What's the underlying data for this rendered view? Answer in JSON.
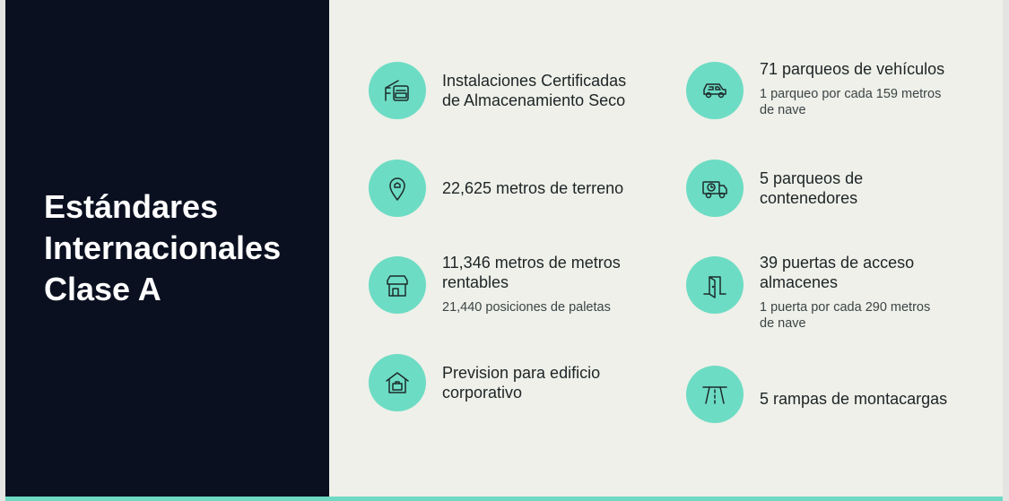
{
  "heading": {
    "line1": "Estándares",
    "line2": "Internacionales",
    "line3": "Clase A"
  },
  "colors": {
    "panel": "#0a1020",
    "background": "#eef0e9",
    "accent": "#6ddcc4"
  },
  "items": [
    {
      "icon": "warehouse-truck-icon",
      "title1": "Instalaciones Certificadas",
      "title2": "de Almacenamiento Seco"
    },
    {
      "icon": "location-pin-icon",
      "title1": "22,625 metros de terreno"
    },
    {
      "icon": "storefront-icon",
      "title1": "11,346 metros de metros",
      "title2": "rentables",
      "sub1": "21,440 posiciones de paletas"
    },
    {
      "icon": "building-icon",
      "title1": "Prevision para edificio",
      "title2": "corporativo"
    },
    {
      "icon": "car-icon",
      "title1": "71 parqueos de vehículos",
      "sub1": "1 parqueo por cada 159 metros",
      "sub2": "de nave"
    },
    {
      "icon": "delivery-truck-icon",
      "title1": "5 parqueos de",
      "title2": "contenedores"
    },
    {
      "icon": "door-icon",
      "title1": "39 puertas de acceso",
      "title2": "almacenes",
      "sub1": "1 puerta por cada 290 metros",
      "sub2": "de nave"
    },
    {
      "icon": "road-ramp-icon",
      "title1": "5 rampas de montacargas"
    }
  ]
}
